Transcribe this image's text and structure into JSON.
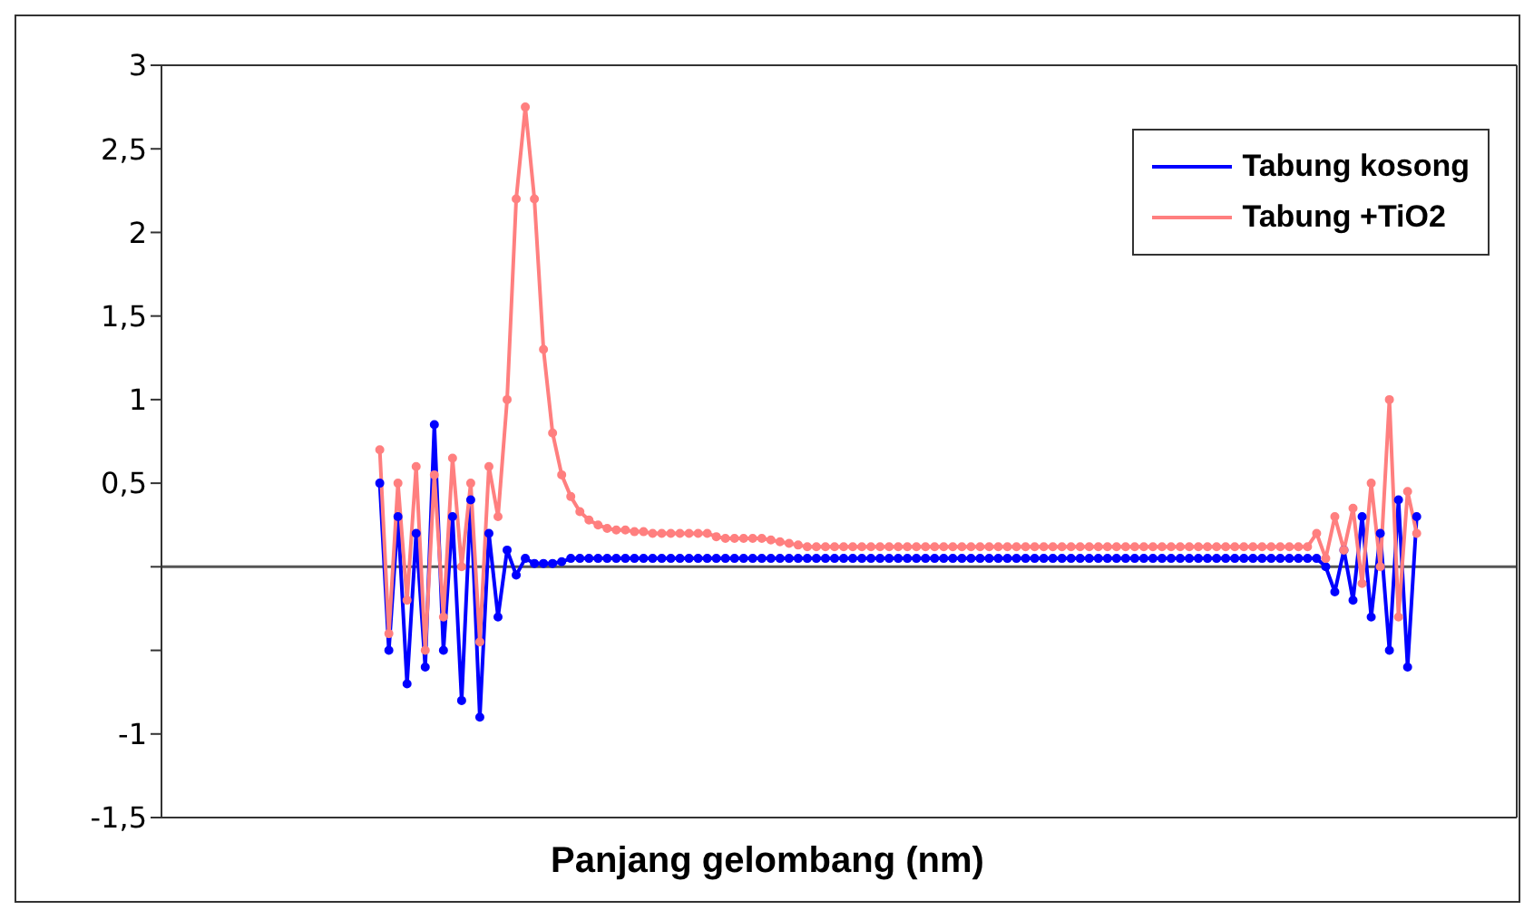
{
  "chart_data": {
    "type": "line",
    "xlabel": "Panjang gelombang (nm)",
    "categories": [
      null,
      null,
      null,
      null,
      null,
      null,
      null,
      null,
      null,
      null,
      null,
      null,
      null,
      null,
      null,
      null,
      null,
      null,
      null,
      null,
      null,
      null,
      null,
      null,
      null,
      null,
      null,
      null,
      null,
      null,
      null,
      null,
      null,
      null,
      null,
      null,
      null,
      null,
      null,
      null,
      null,
      null,
      null,
      null,
      null,
      null,
      null,
      null,
      null,
      null,
      null,
      null,
      null,
      null,
      null,
      null,
      null,
      null,
      null,
      null,
      null,
      null,
      null,
      null,
      null,
      null,
      null,
      null,
      null,
      null,
      null,
      null,
      null,
      null,
      null,
      null,
      null,
      null,
      null,
      null,
      null,
      null,
      null,
      null,
      null,
      null,
      null,
      null,
      null,
      null,
      null,
      null,
      null,
      null,
      null,
      null,
      null,
      null,
      null,
      null,
      null,
      null,
      null,
      null,
      null,
      null,
      null,
      null,
      null,
      null,
      null,
      null,
      null,
      null,
      null,
      null,
      null,
      null,
      null,
      null,
      null,
      null,
      null,
      null,
      null,
      null,
      null,
      null,
      null,
      null,
      null,
      null,
      null,
      null,
      null,
      null,
      null,
      null,
      null,
      null,
      null,
      null,
      null,
      null,
      null,
      null,
      null,
      null,
      null,
      null
    ],
    "series": [
      {
        "name": "Tabung kosong",
        "color": "#0000ff",
        "values": [
          null,
          null,
          null,
          null,
          null,
          null,
          null,
          null,
          null,
          null,
          null,
          null,
          null,
          null,
          null,
          null,
          null,
          null,
          null,
          null,
          null,
          null,
          null,
          null,
          0.5,
          -0.5,
          0.3,
          -0.7,
          0.2,
          -0.6,
          0.85,
          -0.5,
          0.3,
          -0.8,
          0.4,
          -0.9,
          0.2,
          -0.3,
          0.1,
          -0.05,
          0.05,
          0.02,
          0.02,
          0.02,
          0.03,
          0.05,
          0.05,
          0.05,
          0.05,
          0.05,
          0.05,
          0.05,
          0.05,
          0.05,
          0.05,
          0.05,
          0.05,
          0.05,
          0.05,
          0.05,
          0.05,
          0.05,
          0.05,
          0.05,
          0.05,
          0.05,
          0.05,
          0.05,
          0.05,
          0.05,
          0.05,
          0.05,
          0.05,
          0.05,
          0.05,
          0.05,
          0.05,
          0.05,
          0.05,
          0.05,
          0.05,
          0.05,
          0.05,
          0.05,
          0.05,
          0.05,
          0.05,
          0.05,
          0.05,
          0.05,
          0.05,
          0.05,
          0.05,
          0.05,
          0.05,
          0.05,
          0.05,
          0.05,
          0.05,
          0.05,
          0.05,
          0.05,
          0.05,
          0.05,
          0.05,
          0.05,
          0.05,
          0.05,
          0.05,
          0.05,
          0.05,
          0.05,
          0.05,
          0.05,
          0.05,
          0.05,
          0.05,
          0.05,
          0.05,
          0.05,
          0.05,
          0.05,
          0.05,
          0.05,
          0.05,
          0.05,
          0.05,
          0.05,
          0.0,
          -0.15,
          0.1,
          -0.2,
          0.3,
          -0.3,
          0.2,
          -0.5,
          0.4,
          -0.6,
          0.3,
          null,
          null,
          null,
          null,
          null,
          null,
          null,
          null,
          null,
          null,
          null
        ]
      },
      {
        "name": "Tabung +TiO2",
        "color": "#ff7f7f",
        "values": [
          null,
          null,
          null,
          null,
          null,
          null,
          null,
          null,
          null,
          null,
          null,
          null,
          null,
          null,
          null,
          null,
          null,
          null,
          null,
          null,
          null,
          null,
          null,
          null,
          0.7,
          -0.4,
          0.5,
          -0.2,
          0.6,
          -0.5,
          0.55,
          -0.3,
          0.65,
          0.0,
          0.5,
          -0.45,
          0.6,
          0.3,
          1.0,
          2.2,
          2.75,
          2.2,
          1.3,
          0.8,
          0.55,
          0.42,
          0.33,
          0.28,
          0.25,
          0.23,
          0.22,
          0.22,
          0.21,
          0.21,
          0.2,
          0.2,
          0.2,
          0.2,
          0.2,
          0.2,
          0.2,
          0.18,
          0.17,
          0.17,
          0.17,
          0.17,
          0.17,
          0.16,
          0.15,
          0.14,
          0.13,
          0.12,
          0.12,
          0.12,
          0.12,
          0.12,
          0.12,
          0.12,
          0.12,
          0.12,
          0.12,
          0.12,
          0.12,
          0.12,
          0.12,
          0.12,
          0.12,
          0.12,
          0.12,
          0.12,
          0.12,
          0.12,
          0.12,
          0.12,
          0.12,
          0.12,
          0.12,
          0.12,
          0.12,
          0.12,
          0.12,
          0.12,
          0.12,
          0.12,
          0.12,
          0.12,
          0.12,
          0.12,
          0.12,
          0.12,
          0.12,
          0.12,
          0.12,
          0.12,
          0.12,
          0.12,
          0.12,
          0.12,
          0.12,
          0.12,
          0.12,
          0.12,
          0.12,
          0.12,
          0.12,
          0.12,
          0.12,
          0.2,
          0.05,
          0.3,
          0.1,
          0.35,
          -0.1,
          0.5,
          0.0,
          1.0,
          -0.3,
          0.45,
          0.2,
          null,
          null,
          null,
          null,
          null,
          null,
          null,
          null,
          null,
          null,
          null
        ]
      }
    ],
    "ylim": [
      -1.5,
      3
    ],
    "yticks": [
      3,
      {
        "value": 2.5,
        "label": "2,5"
      },
      2,
      {
        "value": 1.5,
        "label": "1,5"
      },
      1,
      {
        "value": 0.5,
        "label": "0,5"
      },
      {
        "value": 0,
        "label": null
      },
      {
        "value": -0.5,
        "label": null
      },
      -1,
      {
        "value": -1.5,
        "label": "-1,5"
      }
    ],
    "ref_lines": [
      {
        "axis": "y",
        "value": 0,
        "color": "#555555"
      }
    ],
    "tick_labels": "y",
    "grid": false,
    "legend": "top right",
    "marker": "circle",
    "line_style": "solid"
  }
}
